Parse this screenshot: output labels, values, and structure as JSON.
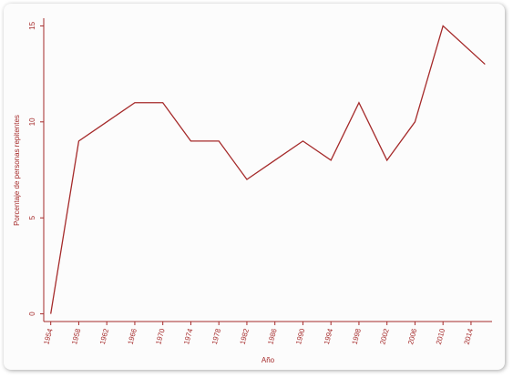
{
  "chart_data": {
    "type": "line",
    "xlabel": "Año",
    "ylabel": "Porcentaje de personas repitentes",
    "x": [
      1954,
      1958,
      1962,
      1966,
      1970,
      1974,
      1978,
      1982,
      1986,
      1990,
      1994,
      1998,
      2002,
      2006,
      2010,
      2016
    ],
    "series": [
      {
        "color": "#a52a2a",
        "values": [
          0,
          9,
          10,
          11,
          11,
          9,
          9,
          7,
          8,
          9,
          8,
          11,
          8,
          10,
          15,
          13
        ]
      }
    ],
    "xlim": [
      1953,
      2017
    ],
    "xticks": [
      1954,
      1958,
      1962,
      1966,
      1970,
      1974,
      1978,
      1982,
      1986,
      1990,
      1994,
      1998,
      2002,
      2006,
      2010,
      2014
    ],
    "ylim": [
      -0.4,
      15.4
    ],
    "yticks": [
      0,
      5,
      10,
      15
    ]
  }
}
